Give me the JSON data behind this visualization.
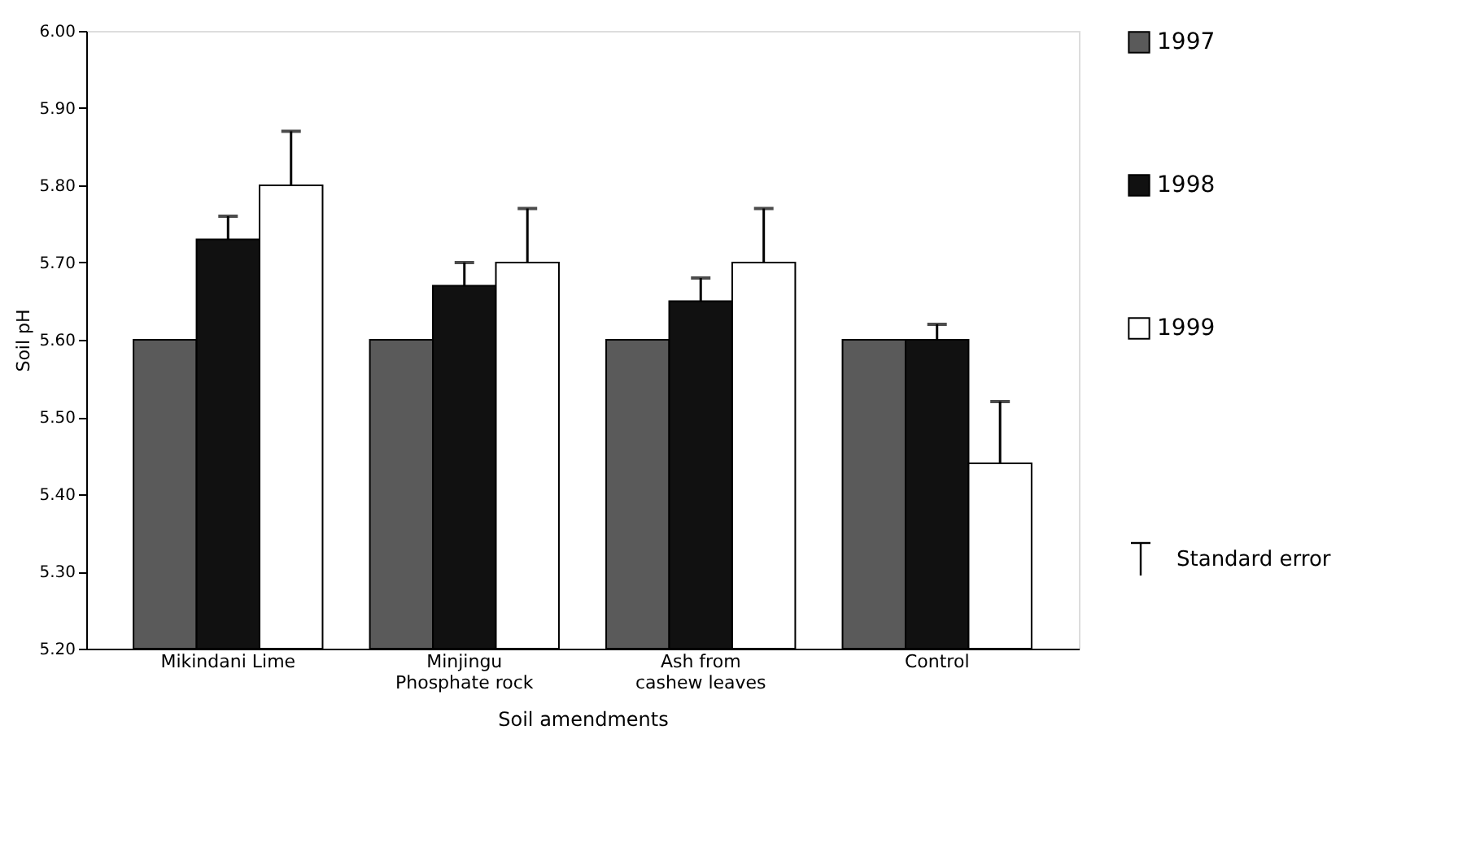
{
  "chart_data": {
    "type": "bar",
    "xlabel": "Soil amendments",
    "ylabel": "Soil pH",
    "categories": [
      "Mikindani Lime",
      "Minjingu Phosphate rock",
      "Ash from cashew leaves",
      "Control"
    ],
    "series": [
      {
        "name": "1997",
        "color": "#5a5a5a",
        "values": [
          5.6,
          5.6,
          5.6,
          5.6
        ]
      },
      {
        "name": "1998",
        "color": "#111111",
        "values": [
          5.73,
          5.67,
          5.65,
          5.6
        ],
        "errors": [
          [
            5.73,
            5.76
          ],
          [
            5.67,
            5.7
          ],
          [
            5.65,
            5.68
          ],
          [
            5.6,
            5.62
          ]
        ]
      },
      {
        "name": "1999",
        "color": "#ffffff",
        "values": [
          5.8,
          5.7,
          5.7,
          5.44
        ],
        "errors": [
          [
            5.8,
            5.87
          ],
          [
            5.7,
            5.77
          ],
          [
            5.7,
            5.77
          ],
          [
            5.44,
            5.52
          ]
        ]
      }
    ],
    "ylim": [
      5.2,
      6.0
    ],
    "yticks": [
      {
        "value": 5.2,
        "label": "5.20"
      },
      {
        "value": 5.3,
        "label": "5.30"
      },
      {
        "value": 5.4,
        "label": "5.40"
      },
      {
        "value": 5.5,
        "label": "5.50"
      },
      {
        "value": 5.6,
        "label": "5.60"
      },
      {
        "value": 5.7,
        "label": "5.70"
      },
      {
        "value": 5.8,
        "label": "5.80"
      },
      {
        "value": 5.9,
        "label": "5.90"
      },
      {
        "value": 6.0,
        "label": "6.00"
      }
    ],
    "grid": false,
    "legend": "right",
    "annotations": [
      "Standard error"
    ]
  }
}
